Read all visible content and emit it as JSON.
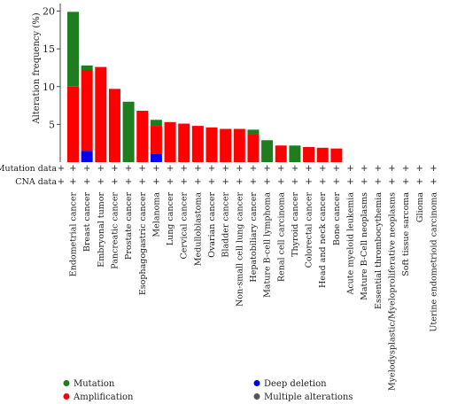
{
  "chart_data": {
    "type": "bar",
    "stacked": true,
    "ylabel": "Alteration frequency (%)",
    "ylim": [
      0,
      21
    ],
    "yticks": [
      5,
      10,
      15,
      20
    ],
    "categories": [
      "Endometrial cancer",
      "Breast cancer",
      "Embryonal tumor",
      "Pancreatic cancer",
      "Prostate cancer",
      "Esophagogastric cancer",
      "Melanoma",
      "Lung cancer",
      "Cervical cancer",
      "Medulloblastoma",
      "Ovarian cancer",
      "Bladder cancer",
      "Non-small cell lung cancer",
      "Hepatobiliary cancer",
      "Mature B-cell lymphoma",
      "Renal cell carcinoma",
      "Thyroid cancer",
      "Colorectal cancer",
      "Head and neck cancer",
      "Bone cancer",
      "Acute myeloid leukemia",
      "Mature B-Cell neoplasms",
      "Essential thrombocythemia",
      "Myelodysplastic/Myeloproliferative neoplasms",
      "Soft tissue sarcoma",
      "Glioma",
      "Uterine endometrioid carcinoma"
    ],
    "series": [
      {
        "name": "Deep deletion",
        "color": "#0000ee",
        "values": [
          0,
          1.5,
          0,
          0,
          0,
          0,
          1.1,
          0,
          0,
          0,
          0,
          0,
          0,
          0,
          0,
          0,
          0,
          0,
          0,
          0,
          0,
          0,
          0,
          0,
          0,
          0,
          0
        ]
      },
      {
        "name": "Amplification",
        "color": "#ff0000",
        "values": [
          10,
          10.7,
          12.6,
          9.7,
          0,
          6.8,
          3.7,
          5.3,
          5.1,
          4.8,
          4.6,
          4.4,
          4.4,
          3.7,
          0,
          2.2,
          0,
          2.0,
          1.9,
          1.8,
          0,
          0,
          0,
          0,
          0,
          0,
          0
        ]
      },
      {
        "name": "Mutation",
        "color": "#1e7d1e",
        "values": [
          9.9,
          0.6,
          0,
          0,
          8.0,
          0,
          0.8,
          0,
          0,
          0,
          0,
          0,
          0,
          0.6,
          2.9,
          0,
          2.2,
          0,
          0,
          0,
          0,
          0,
          0,
          0,
          0,
          0,
          0
        ]
      },
      {
        "name": "Multiple alterations",
        "color": "#555555",
        "values": [
          0,
          0,
          0,
          0,
          0,
          0,
          0,
          0,
          0,
          0,
          0,
          0,
          0,
          0,
          0,
          0,
          0,
          0,
          0,
          0,
          0,
          0,
          0,
          0,
          0,
          0,
          0
        ]
      }
    ],
    "legend_order": [
      "Mutation",
      "Deep deletion",
      "Amplification",
      "Multiple alterations"
    ],
    "legend_placement": "bottom"
  },
  "rows": [
    {
      "label": "Mutation data",
      "symbol": "+"
    },
    {
      "label": "CNA data",
      "symbol": "+"
    }
  ]
}
